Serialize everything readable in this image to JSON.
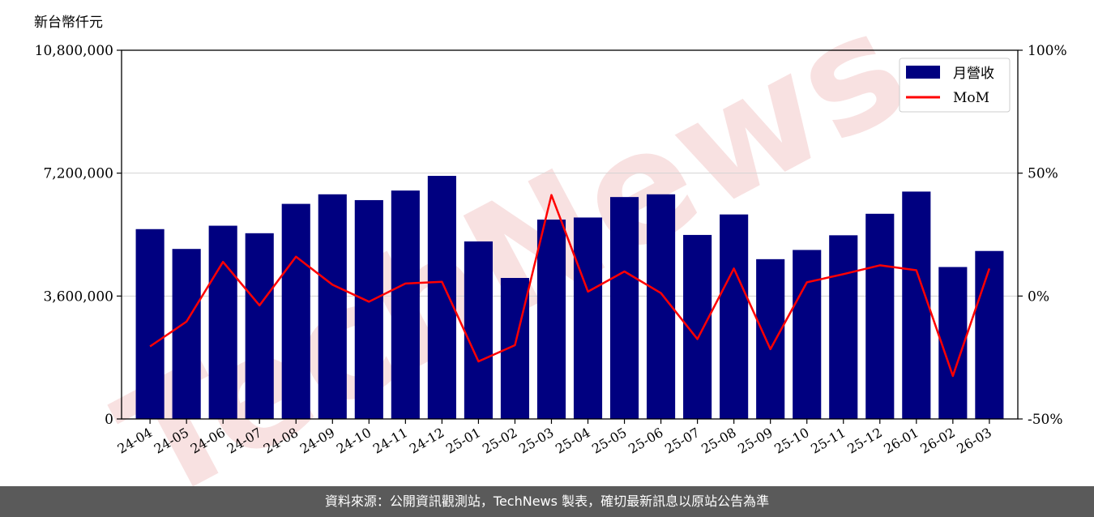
{
  "footer": {
    "text": "資料來源：公開資訊觀測站，TechNews 製表，確切最新訊息以原站公告為準"
  },
  "watermark": {
    "text": "TechNews",
    "color": "#f2c9c9"
  },
  "chart_data": {
    "type": "bar",
    "y_unit_label": "新台幣仟元",
    "categories": [
      "24-04",
      "24-05",
      "24-06",
      "24-07",
      "24-08",
      "24-09",
      "24-10",
      "24-11",
      "24-12",
      "25-01",
      "25-02",
      "25-03",
      "25-04",
      "25-05",
      "25-06",
      "25-07",
      "25-08",
      "25-09",
      "25-10",
      "25-11",
      "25-12",
      "26-01",
      "26-02",
      "26-03"
    ],
    "series": [
      {
        "name": "月營收",
        "type": "bar",
        "axis": "left",
        "color": "#000080",
        "values": [
          5560000,
          4980000,
          5660000,
          5440000,
          6300000,
          6580000,
          6410000,
          6690000,
          7120000,
          5200000,
          4130000,
          5840000,
          5900000,
          6500000,
          6580000,
          5390000,
          5990000,
          4680000,
          4950000,
          5380000,
          6010000,
          6660000,
          4450000,
          4920000
        ]
      },
      {
        "name": "MoM",
        "type": "line",
        "axis": "right",
        "color": "#ff0000",
        "values": [
          -20.5,
          -10.4,
          13.9,
          -3.8,
          16.0,
          4.6,
          -2.3,
          5.1,
          5.8,
          -26.6,
          -20.0,
          41.1,
          1.8,
          10.0,
          1.2,
          -17.5,
          11.2,
          -21.6,
          5.6,
          8.9,
          12.5,
          10.5,
          -32.5,
          11.2
        ]
      }
    ],
    "ylim": [
      0,
      10800000
    ],
    "y_ticks": [
      "0",
      "3,600,000",
      "7,200,000",
      "10,800,000"
    ],
    "y_tick_values": [
      0,
      3600000,
      7200000,
      10800000
    ],
    "y2lim": [
      -50,
      100
    ],
    "y2_ticks": [
      "-50%",
      "0%",
      "50%",
      "100%"
    ],
    "y2_tick_values": [
      -50,
      0,
      50,
      100
    ],
    "grid": "horizontal",
    "grid_color": "#d3d3d3",
    "legend_position": "top-right"
  }
}
